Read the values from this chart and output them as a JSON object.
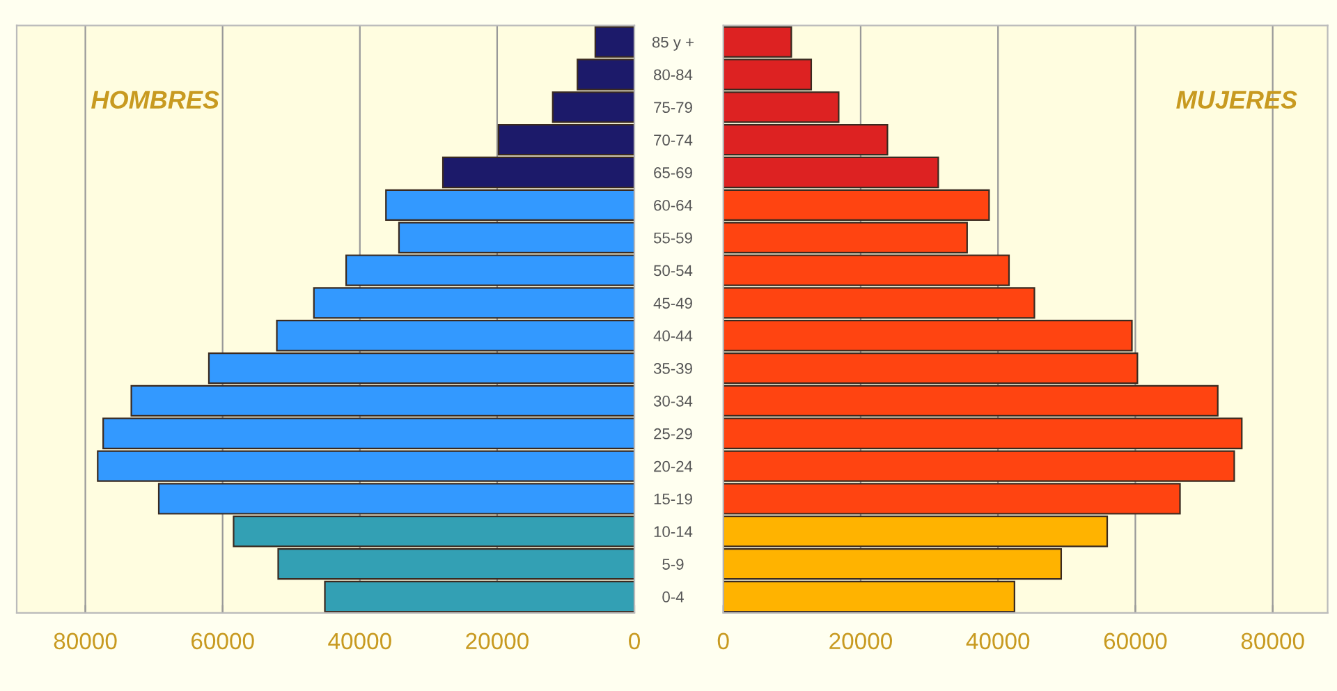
{
  "chart_data": [
    {
      "type": "bar",
      "orientation": "horizontal",
      "annotations": [
        "HOMBRES"
      ],
      "tick_labels": "x",
      "categories": [
        null,
        null,
        null,
        null,
        null,
        null,
        null,
        null,
        null,
        null,
        null,
        null,
        null,
        null,
        null,
        null,
        null,
        null
      ],
      "values": [
        5700,
        8300,
        11900,
        19800,
        27900,
        36200,
        34300,
        42000,
        46700,
        52100,
        62000,
        73300,
        77400,
        78200,
        69300,
        58400,
        51900,
        45100
      ],
      "colors": [
        "#1c1a6a",
        "#1c1a6a",
        "#1c1a6a",
        "#1c1a6a",
        "#1c1a6a",
        "#3399ff",
        "#3399ff",
        "#3399ff",
        "#3399ff",
        "#3399ff",
        "#3399ff",
        "#3399ff",
        "#3399ff",
        "#3399ff",
        "#3399ff",
        "#33a0b4",
        "#33a0b4",
        "#33a0b4"
      ],
      "xlim": [
        90000,
        0
      ],
      "xticks": [
        80000,
        60000,
        40000,
        20000,
        0
      ],
      "grid": "x"
    },
    {
      "type": "bar",
      "orientation": "horizontal",
      "annotations": [
        "MUJERES"
      ],
      "categories": [
        "85 y +",
        "80-84",
        "75-79",
        "70-74",
        "65-69",
        "60-64",
        "55-59",
        "50-54",
        "45-49",
        "40-44",
        "35-39",
        "30-34",
        "25-29",
        "20-24",
        "15-19",
        "10-14",
        "5-9",
        "0-4"
      ],
      "values": [
        9900,
        12800,
        16800,
        23900,
        31300,
        38700,
        35500,
        41600,
        45300,
        59500,
        60300,
        72000,
        75500,
        74400,
        66500,
        55900,
        49200,
        42400
      ],
      "colors": [
        "#dd2222",
        "#dd2222",
        "#dd2222",
        "#dd2222",
        "#dd2222",
        "#ff4411",
        "#ff4411",
        "#ff4411",
        "#ff4411",
        "#ff4411",
        "#ff4411",
        "#ff4411",
        "#ff4411",
        "#ff4411",
        "#ff4411",
        "#ffb300",
        "#ffb300",
        "#ffb300"
      ],
      "xlim": [
        0,
        88000
      ],
      "xticks": [
        0,
        20000,
        40000,
        60000,
        80000
      ],
      "grid": "x"
    }
  ]
}
